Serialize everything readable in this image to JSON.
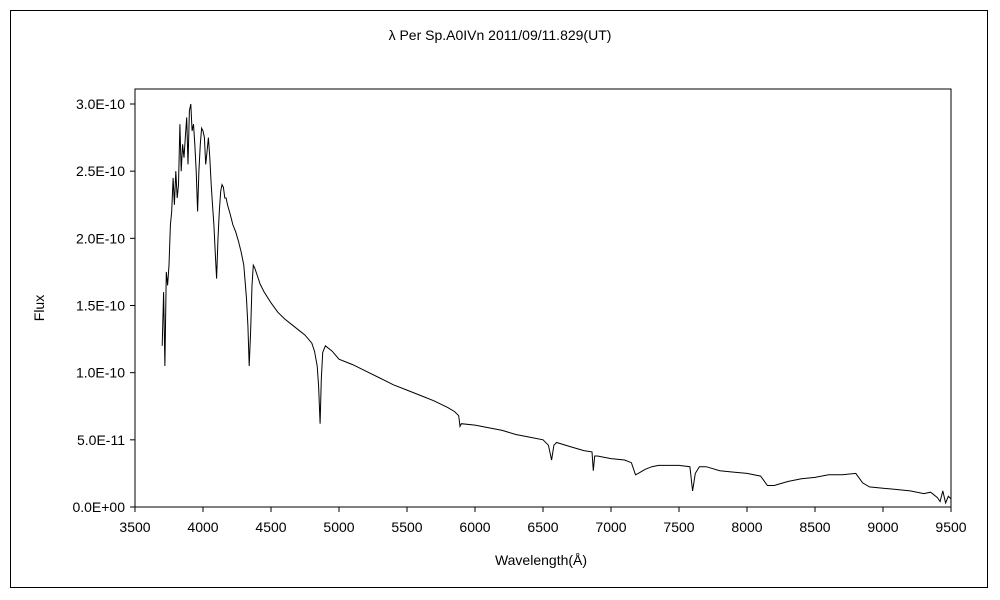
{
  "chart_data": {
    "type": "line",
    "title": "λ Per  Sp.A0IVn   2011/09/11.829(UT)",
    "xlabel": "Wavelength(Å)",
    "ylabel": "Flux",
    "xlim": [
      3500,
      9500
    ],
    "ylim": [
      0,
      3e-10
    ],
    "grid": false,
    "legend": "none",
    "x_ticks": [
      3500,
      4000,
      4500,
      5000,
      5500,
      6000,
      6500,
      7000,
      7500,
      8000,
      8500,
      9000,
      9500
    ],
    "x_tick_labels": [
      "3500",
      "4000",
      "4500",
      "5000",
      "5500",
      "6000",
      "6500",
      "7000",
      "7500",
      "8000",
      "8500",
      "9000",
      "9500"
    ],
    "y_ticks": [
      0,
      5e-11,
      1e-10,
      1.5e-10,
      2e-10,
      2.5e-10,
      3e-10
    ],
    "y_tick_labels": [
      "0.0E+00",
      "5.0E-11",
      "1.0E-10",
      "1.5E-10",
      "2.0E-10",
      "2.5E-10",
      "3.0E-10"
    ],
    "line_color": "#000000",
    "series": [
      {
        "x": [
          3700,
          3710,
          3720,
          3730,
          3740,
          3750,
          3760,
          3770,
          3780,
          3790,
          3800,
          3810,
          3820,
          3830,
          3840,
          3850,
          3860,
          3870,
          3880,
          3890,
          3900,
          3910,
          3920,
          3930,
          3940,
          3950,
          3960,
          3970,
          3980,
          3990,
          4000,
          4010,
          4020,
          4030,
          4040,
          4050,
          4060,
          4070,
          4080,
          4090,
          4100,
          4110,
          4120,
          4130,
          4140,
          4150,
          4160,
          4170,
          4180,
          4200,
          4220,
          4240,
          4260,
          4280,
          4300,
          4320,
          4330,
          4340,
          4350,
          4360,
          4370,
          4380,
          4400,
          4420,
          4450,
          4500,
          4550,
          4600,
          4650,
          4700,
          4750,
          4800,
          4820,
          4840,
          4850,
          4861,
          4870,
          4880,
          4900,
          4950,
          5000,
          5100,
          5200,
          5300,
          5400,
          5500,
          5600,
          5700,
          5800,
          5850,
          5880,
          5890,
          5900,
          6000,
          6100,
          6200,
          6300,
          6400,
          6500,
          6540,
          6563,
          6580,
          6600,
          6700,
          6800,
          6860,
          6870,
          6880,
          6900,
          7000,
          7100,
          7150,
          7180,
          7200,
          7250,
          7300,
          7350,
          7400,
          7500,
          7580,
          7600,
          7620,
          7650,
          7700,
          7800,
          7900,
          8000,
          8100,
          8150,
          8200,
          8300,
          8400,
          8500,
          8600,
          8700,
          8800,
          8850,
          8900,
          9000,
          9100,
          9200,
          9300,
          9350,
          9400,
          9420,
          9440,
          9460,
          9480,
          9500
        ],
        "y": [
          1.2e-10,
          1.6e-10,
          1.05e-10,
          1.75e-10,
          1.65e-10,
          1.8e-10,
          2.1e-10,
          2.2e-10,
          2.45e-10,
          2.25e-10,
          2.5e-10,
          2.3e-10,
          2.4e-10,
          2.85e-10,
          2.5e-10,
          2.7e-10,
          2.6e-10,
          2.75e-10,
          2.9e-10,
          2.55e-10,
          2.95e-10,
          3e-10,
          2.8e-10,
          2.85e-10,
          2.7e-10,
          2.5e-10,
          2.2e-10,
          2.5e-10,
          2.7e-10,
          2.82e-10,
          2.8e-10,
          2.75e-10,
          2.55e-10,
          2.65e-10,
          2.75e-10,
          2.6e-10,
          2.4e-10,
          2.25e-10,
          2.1e-10,
          1.9e-10,
          1.7e-10,
          2e-10,
          2.2e-10,
          2.35e-10,
          2.4e-10,
          2.38e-10,
          2.3e-10,
          2.3e-10,
          2.25e-10,
          2.18e-10,
          2.1e-10,
          2.05e-10,
          1.98e-10,
          1.9e-10,
          1.8e-10,
          1.55e-10,
          1.35e-10,
          1.05e-10,
          1.3e-10,
          1.65e-10,
          1.8e-10,
          1.78e-10,
          1.72e-10,
          1.66e-10,
          1.6e-10,
          1.52e-10,
          1.45e-10,
          1.4e-10,
          1.36e-10,
          1.32e-10,
          1.28e-10,
          1.22e-10,
          1.16e-10,
          1.05e-10,
          9e-11,
          6.2e-11,
          9.5e-11,
          1.15e-10,
          1.2e-10,
          1.16e-10,
          1.1e-10,
          1.06e-10,
          1.01e-10,
          9.6e-11,
          9.1e-11,
          8.7e-11,
          8.3e-11,
          7.9e-11,
          7.4e-11,
          7.1e-11,
          6.8e-11,
          6e-11,
          6.2e-11,
          6.1e-11,
          5.9e-11,
          5.7e-11,
          5.4e-11,
          5.2e-11,
          5e-11,
          4.6e-11,
          3.5e-11,
          4.6e-11,
          4.8e-11,
          4.5e-11,
          4.2e-11,
          4.1e-11,
          2.7e-11,
          3.8e-11,
          3.8e-11,
          3.6e-11,
          3.5e-11,
          3.3e-11,
          2.4e-11,
          2.5e-11,
          2.8e-11,
          3e-11,
          3.1e-11,
          3.1e-11,
          3.1e-11,
          3e-11,
          1.2e-11,
          2.5e-11,
          3e-11,
          3e-11,
          2.7e-11,
          2.6e-11,
          2.5e-11,
          2.3e-11,
          1.6e-11,
          1.6e-11,
          1.9e-11,
          2.1e-11,
          2.2e-11,
          2.4e-11,
          2.4e-11,
          2.5e-11,
          1.8e-11,
          1.5e-11,
          1.4e-11,
          1.3e-11,
          1.2e-11,
          1e-11,
          1.1e-11,
          7e-12,
          4e-12,
          1.2e-11,
          3e-12,
          8e-12,
          6e-12
        ]
      }
    ]
  }
}
